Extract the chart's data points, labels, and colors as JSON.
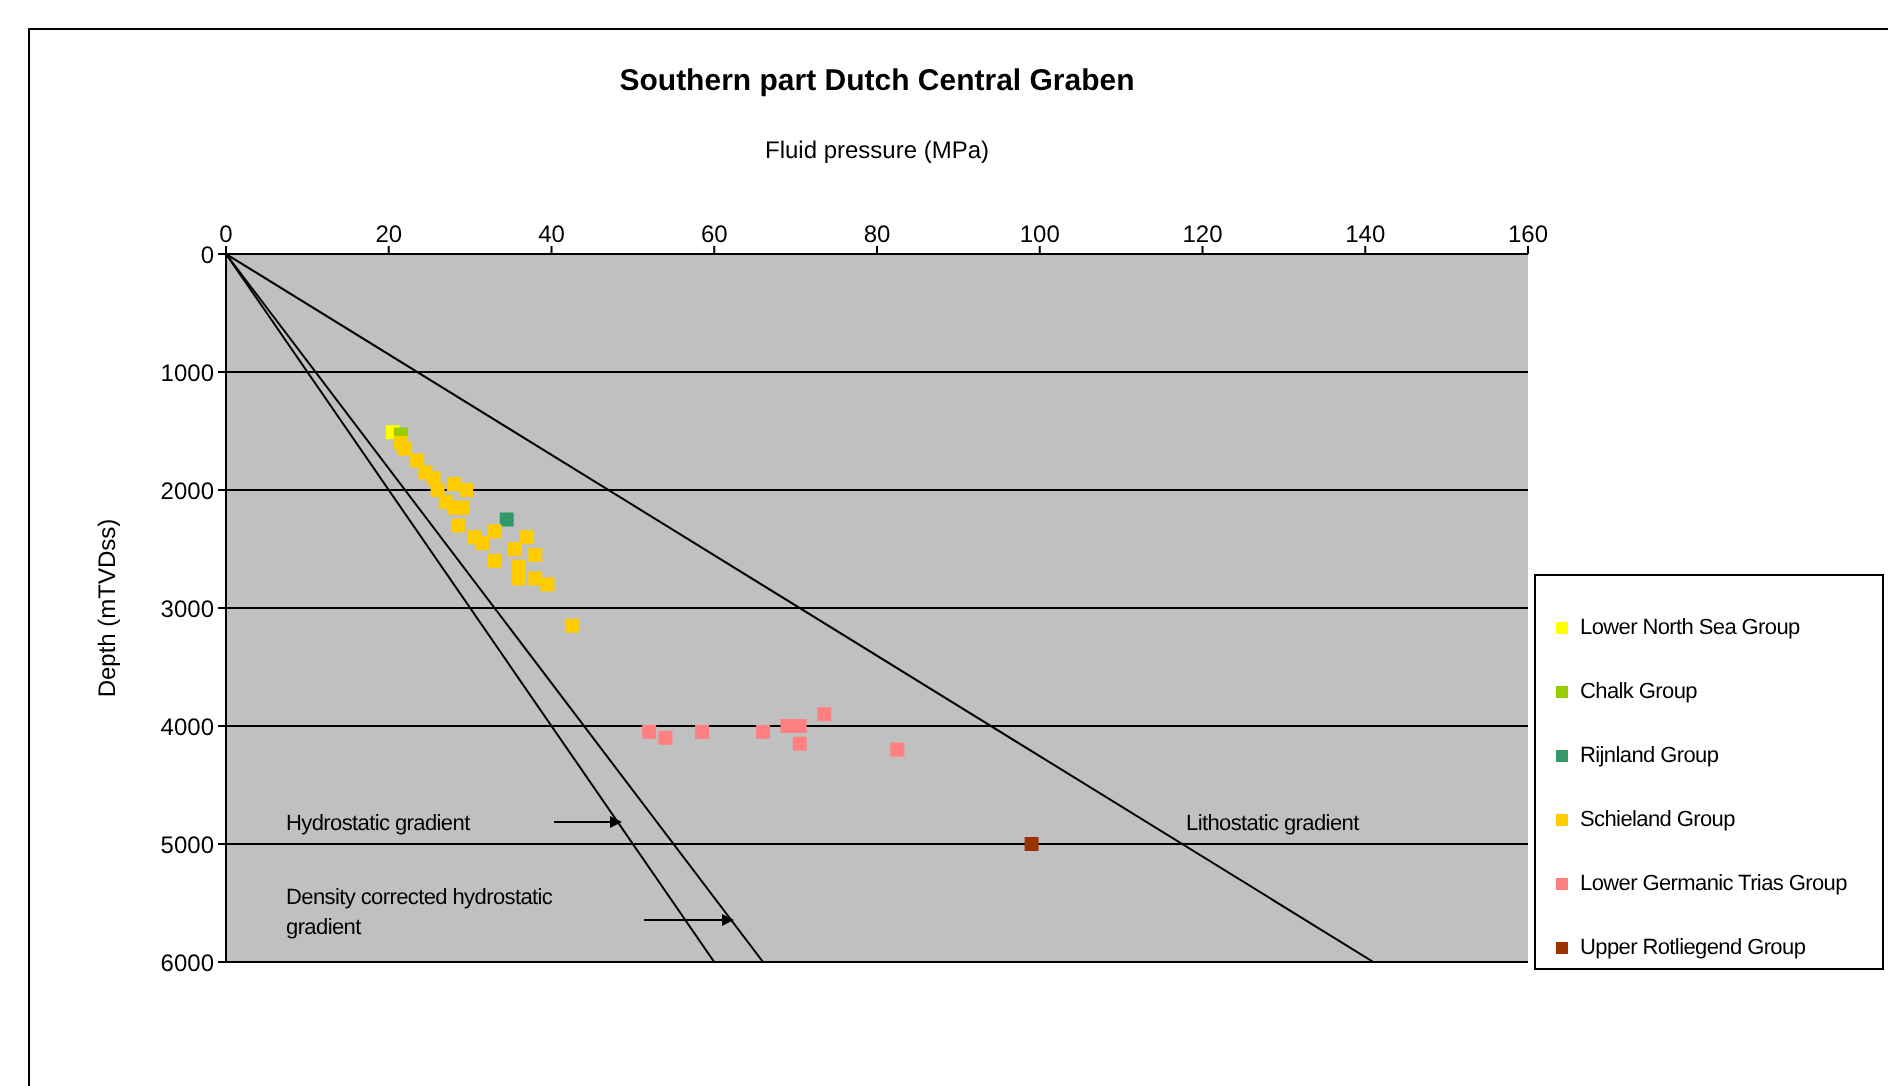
{
  "chart_data": {
    "type": "scatter",
    "title": "Southern part Dutch Central Graben",
    "xlabel": "Fluid pressure (MPa)",
    "ylabel": "Depth (mTVDss)",
    "xlim": [
      0,
      160
    ],
    "xticks": [
      0,
      20,
      40,
      60,
      80,
      100,
      120,
      140,
      160
    ],
    "ylim": [
      6000,
      0
    ],
    "yticks": [
      0,
      1000,
      2000,
      3000,
      4000,
      5000,
      6000
    ],
    "grid": "y",
    "legend": "right",
    "marker": "square",
    "series": [
      {
        "type": "line",
        "color": "#000000",
        "marker": "none",
        "x": [
          0,
          60
        ],
        "values": [
          0,
          6000
        ]
      },
      {
        "type": "line",
        "color": "#000000",
        "marker": "none",
        "x": [
          0,
          66
        ],
        "values": [
          0,
          6000
        ]
      },
      {
        "type": "line",
        "color": "#000000",
        "marker": "none",
        "x": [
          0,
          141
        ],
        "values": [
          0,
          6000
        ]
      },
      {
        "name": "Lower North Sea Group",
        "color": "#ffff00",
        "x": [
          20.5
        ],
        "values": [
          1510
        ]
      },
      {
        "name": "Chalk Group",
        "color": "#99cc00",
        "x": [
          21.5
        ],
        "values": [
          1530
        ]
      },
      {
        "name": "Rijnland Group",
        "color": "#339966",
        "x": [
          34.5
        ],
        "values": [
          2250
        ]
      },
      {
        "name": "Schieland Group",
        "color": "#ffcc00",
        "x": [
          21.5,
          22,
          23.5,
          24.5,
          25.5,
          26,
          28,
          29.5,
          27,
          29,
          28,
          28.5,
          30.5,
          33,
          31.5,
          33,
          35.5,
          37,
          36,
          38,
          36,
          38,
          39.5,
          42.5
        ],
        "values": [
          1600,
          1650,
          1750,
          1850,
          1900,
          2000,
          1950,
          2000,
          2100,
          2150,
          2150,
          2300,
          2400,
          2350,
          2450,
          2600,
          2500,
          2400,
          2650,
          2550,
          2750,
          2750,
          2800,
          3150
        ]
      },
      {
        "name": "Lower Germanic Trias Group",
        "color": "#ff8080",
        "x": [
          52,
          54,
          58.5,
          66,
          69,
          70.5,
          73.5,
          70.5,
          82.5
        ],
        "values": [
          4050,
          4100,
          4050,
          4050,
          4000,
          4000,
          3900,
          4150,
          4200
        ]
      },
      {
        "name": "Upper Rotliegend Group",
        "color": "#993300",
        "x": [
          99
        ],
        "values": [
          5000
        ]
      }
    ],
    "annotations": [
      "Hydrostatic gradient",
      "Density corrected hydrostatic gradient",
      "Lithostatic gradient"
    ]
  }
}
